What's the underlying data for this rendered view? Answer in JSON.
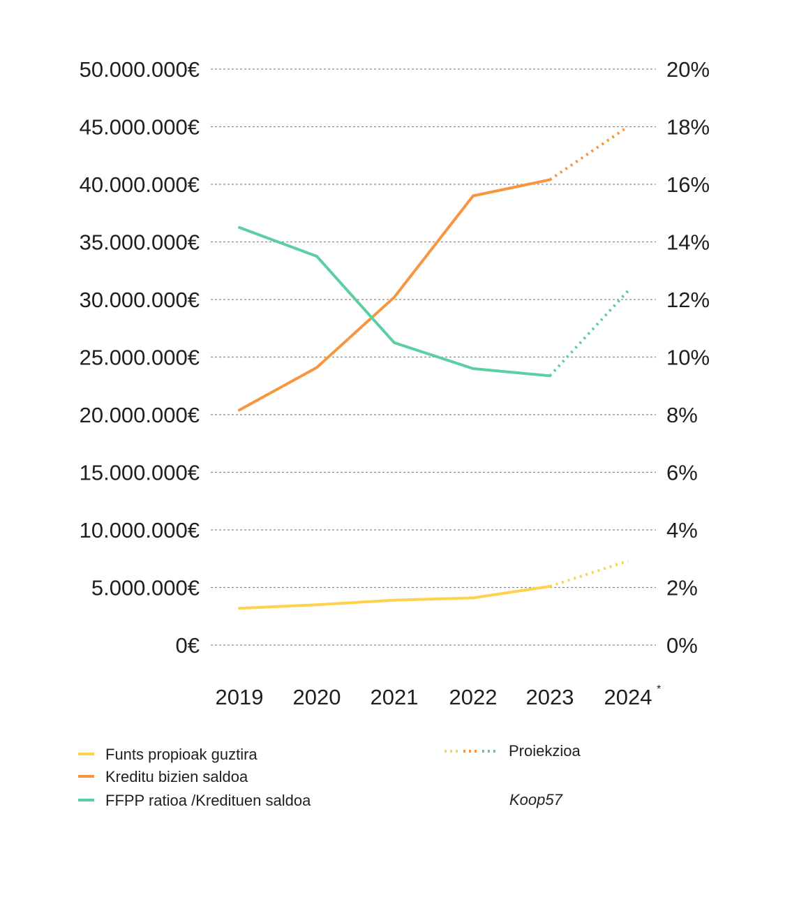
{
  "chart_data": {
    "type": "line",
    "categories": [
      "2019",
      "2020",
      "2021",
      "2022",
      "2023",
      "2024"
    ],
    "category_marks": [
      "",
      "",
      "",
      "",
      "",
      "*"
    ],
    "left_axis": {
      "ylim": [
        0,
        50000000
      ],
      "ticks": [
        0,
        5000000,
        10000000,
        15000000,
        20000000,
        25000000,
        30000000,
        35000000,
        40000000,
        45000000,
        50000000
      ],
      "tick_labels": [
        "0€",
        "5.000.000€",
        "10.000.000€",
        "15.000.000€",
        "20.000.000€",
        "25.000.000€",
        "30.000.000€",
        "35.000.000€",
        "40.000.000€",
        "45.000.000€",
        "50.000.000€"
      ]
    },
    "right_axis": {
      "ylim": [
        0,
        20
      ],
      "tick_labels": [
        "0%",
        "2%",
        "4%",
        "6%",
        "8%",
        "10%",
        "12%",
        "14%",
        "16%",
        "18%",
        "20%"
      ]
    },
    "grid": "horizontal dashed",
    "projection_from": "2023",
    "series": [
      {
        "name": "Funts propioak guztira",
        "axis": "left",
        "color": "#ffd24d",
        "values": [
          3200000,
          3500000,
          3900000,
          4100000,
          5100000,
          7300000
        ]
      },
      {
        "name": "Kreditu bizien saldoa",
        "axis": "left",
        "color": "#f7963f",
        "values": [
          20400000,
          24100000,
          30200000,
          39000000,
          40400000,
          45000000
        ]
      },
      {
        "name": "FFPP ratioa /Kredituen saldoa",
        "axis": "right",
        "color": "#5ccfa0",
        "values": [
          14.5,
          13.5,
          10.5,
          9.6,
          9.35,
          12.3
        ]
      }
    ],
    "projection_label": "Proiekzioa",
    "source": "Koop57"
  }
}
